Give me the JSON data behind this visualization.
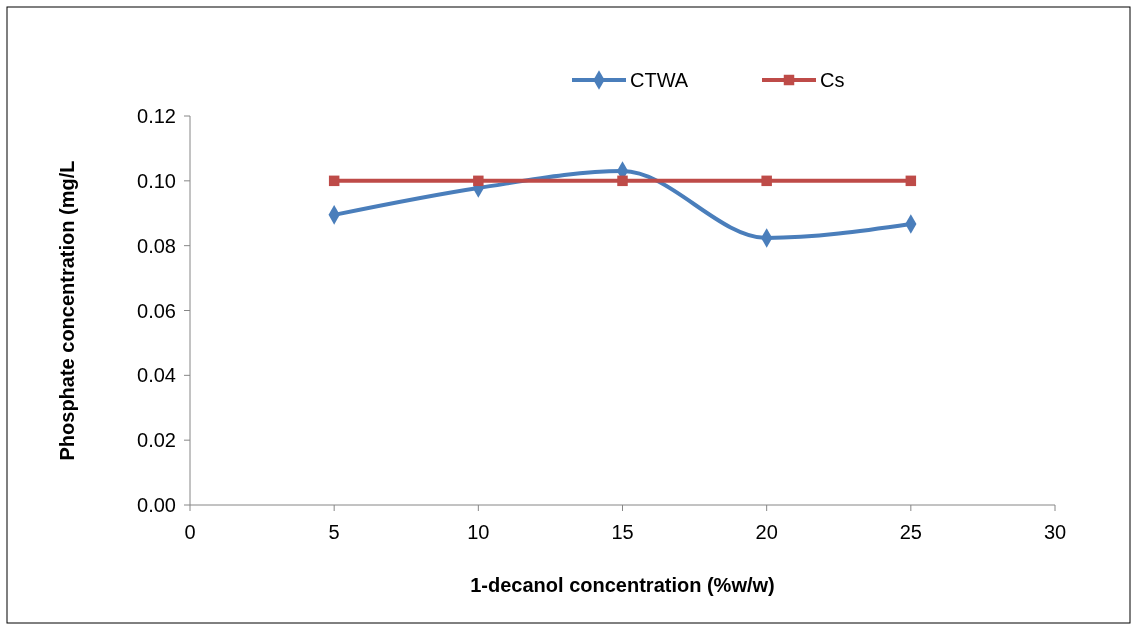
{
  "chart_data": {
    "type": "line",
    "xlabel": "1-decanol concentration (%w/w)",
    "ylabel": "Phosphate concentration (mg/L",
    "x": [
      5,
      10,
      15,
      20,
      25
    ],
    "series": [
      {
        "name": "CTWA",
        "color": "#4a7ebb",
        "marker": "diamond",
        "values": [
          0.0895,
          0.0978,
          0.103,
          0.0824,
          0.0867
        ]
      },
      {
        "name": "Cs",
        "color": "#be4b48",
        "marker": "square",
        "values": [
          0.1,
          0.1,
          0.1,
          0.1,
          0.1
        ]
      }
    ],
    "xlim": [
      0,
      30
    ],
    "xticks": [
      0,
      5,
      10,
      15,
      20,
      25,
      30
    ],
    "ylim": [
      0,
      0.12
    ],
    "yticks": [
      {
        "value": 0,
        "label": "0.00"
      },
      {
        "value": 0.02,
        "label": "0.02"
      },
      {
        "value": 0.04,
        "label": "0.04"
      },
      {
        "value": 0.06,
        "label": "0.06"
      },
      {
        "value": 0.08,
        "label": "0.08"
      },
      {
        "value": 0.1,
        "label": "0.10"
      },
      {
        "value": 0.12,
        "label": "0.12"
      }
    ],
    "grid": false,
    "legend": "top",
    "line_style": "solid"
  }
}
